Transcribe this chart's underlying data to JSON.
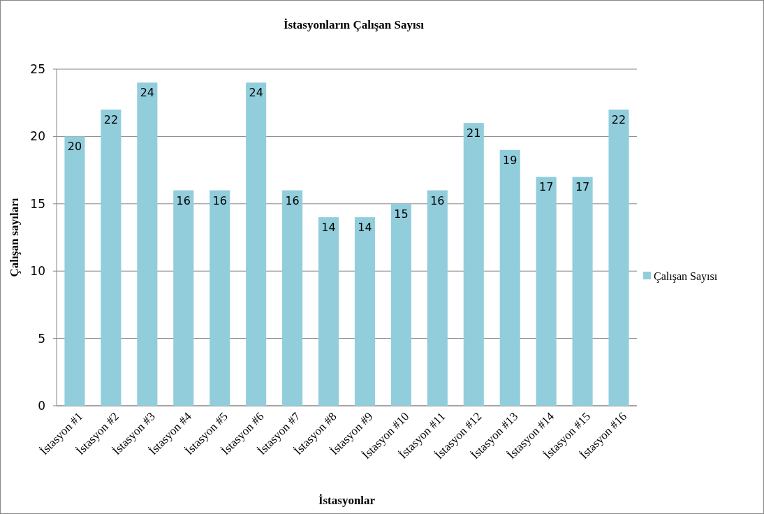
{
  "chart_data": {
    "type": "bar",
    "title": "İstasyonların Çalışan Sayısı",
    "xlabel": "İstasyonlar",
    "ylabel": "Çalışan sayıları",
    "categories": [
      "İstasyon #1",
      "İstasyon #2",
      "İstasyon #3",
      "İstasyon #4",
      "İstasyon #5",
      "İstasyon #6",
      "İstasyon #7",
      "İstasyon #8",
      "İstasyon #9",
      "İstasyon #10",
      "İstasyon #11",
      "İstasyon #12",
      "İstasyon #13",
      "İstasyon #14",
      "İstasyon #15",
      "İstasyon #16"
    ],
    "series": [
      {
        "name": "Çalışan Sayısı",
        "color": "#92cddc",
        "values": [
          20,
          22,
          24,
          16,
          16,
          24,
          16,
          14,
          14,
          15,
          16,
          21,
          19,
          17,
          17,
          22
        ]
      }
    ],
    "ylim": [
      0,
      25
    ],
    "yticks": [
      0,
      5,
      10,
      15,
      20,
      25
    ],
    "grid": "y",
    "legend": "right",
    "data_labels": true
  }
}
